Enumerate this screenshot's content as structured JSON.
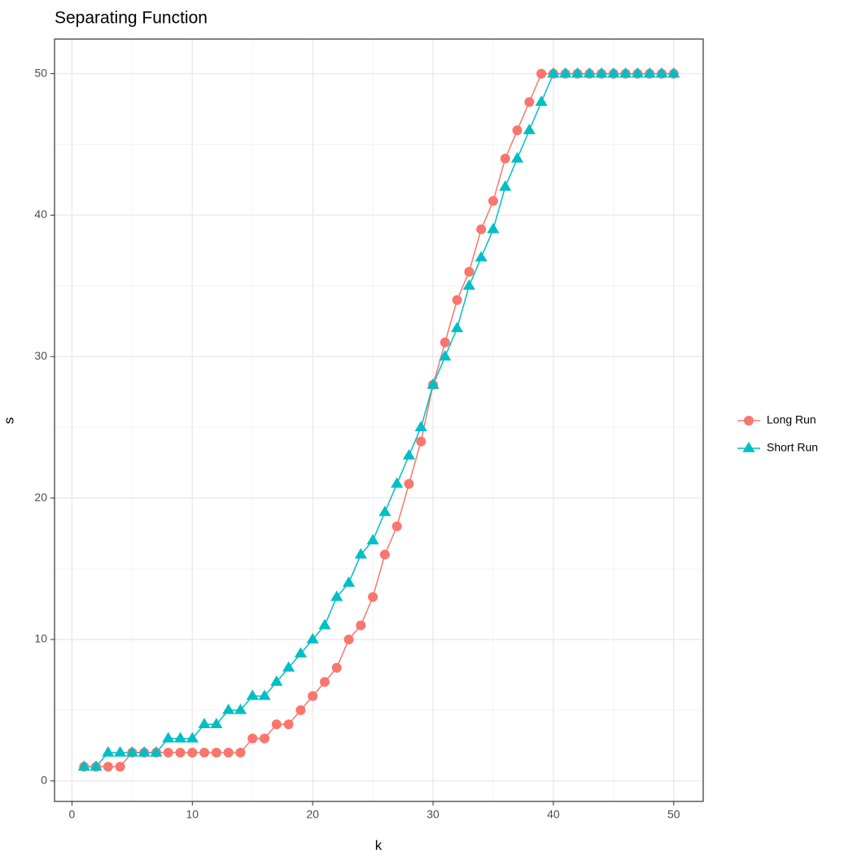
{
  "chart_data": {
    "type": "line",
    "title": "Separating Function",
    "x_label": "k",
    "y_label": "s",
    "x": [
      1,
      2,
      3,
      4,
      5,
      6,
      7,
      8,
      9,
      10,
      11,
      12,
      13,
      14,
      15,
      16,
      17,
      18,
      19,
      20,
      21,
      22,
      23,
      24,
      25,
      26,
      27,
      28,
      29,
      30,
      31,
      32,
      33,
      34,
      35,
      36,
      37,
      38,
      39,
      40,
      41,
      42,
      43,
      44,
      45,
      46,
      47,
      48,
      49,
      50
    ],
    "series": [
      {
        "name": "Long Run",
        "color": "#f8766d",
        "shape": "circle",
        "values": [
          1,
          1,
          1,
          1,
          2,
          2,
          2,
          2,
          2,
          2,
          2,
          2,
          2,
          2,
          3,
          3,
          4,
          4,
          5,
          6,
          7,
          8,
          10,
          11,
          13,
          16,
          18,
          21,
          24,
          28,
          31,
          34,
          36,
          39,
          41,
          44,
          46,
          48,
          50,
          50,
          50,
          50,
          50,
          50,
          50,
          50,
          50,
          50,
          50,
          50
        ]
      },
      {
        "name": "Short Run",
        "color": "#00bfc4",
        "shape": "triangle",
        "values": [
          1,
          1,
          2,
          2,
          2,
          2,
          2,
          3,
          3,
          3,
          4,
          4,
          5,
          5,
          6,
          6,
          7,
          8,
          9,
          10,
          11,
          13,
          14,
          16,
          17,
          19,
          21,
          23,
          25,
          28,
          30,
          32,
          35,
          37,
          39,
          42,
          44,
          46,
          48,
          50,
          50,
          50,
          50,
          50,
          50,
          50,
          50,
          50,
          50,
          50
        ]
      }
    ],
    "xlim": [
      -1.45,
      52.45
    ],
    "ylim": [
      -1.45,
      52.45
    ],
    "xticks": [
      0,
      10,
      20,
      30,
      40,
      50
    ],
    "yticks": [
      0,
      10,
      20,
      30,
      40,
      50
    ],
    "x_minor_ticks": [
      5,
      15,
      25,
      35,
      45
    ],
    "y_minor_ticks": [
      5,
      15,
      25,
      35,
      45
    ],
    "grid": true,
    "legend_position": "right"
  }
}
